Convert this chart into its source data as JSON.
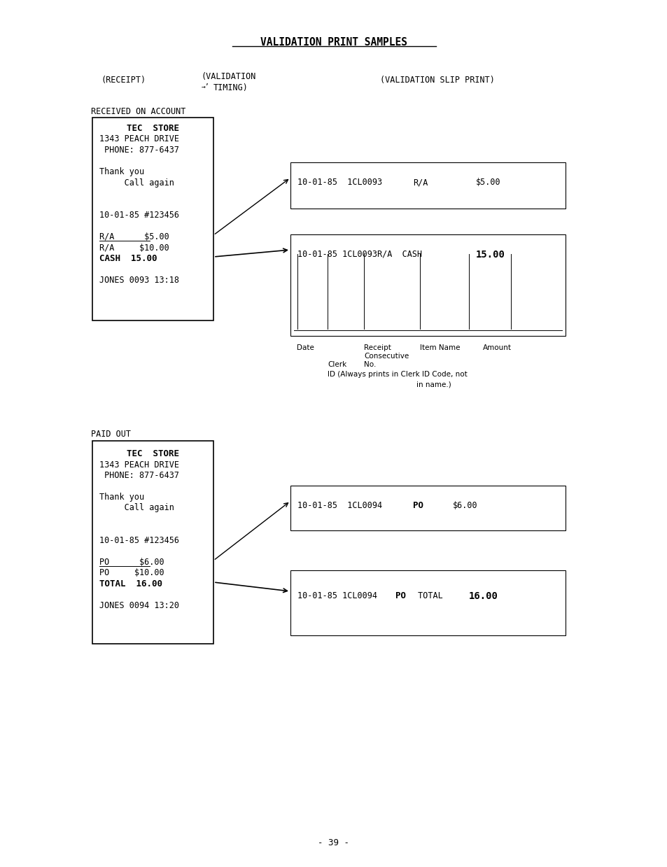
{
  "title": "VALIDATION PRINT SAMPLES",
  "section1_label": "RECEIVED ON ACCOUNT",
  "section2_label": "PAID OUT",
  "receipt1_lines": [
    [
      "TEC  STORE",
      "bold",
      "center"
    ],
    [
      "1343 PEACH DRIVE",
      "normal",
      "left"
    ],
    [
      " PHONE: 877-6437",
      "normal",
      "left"
    ],
    [
      "",
      "normal",
      "left"
    ],
    [
      "Thank you",
      "normal",
      "left"
    ],
    [
      "     Call again",
      "normal",
      "left"
    ],
    [
      "",
      "normal",
      "left"
    ],
    [
      "",
      "normal",
      "left"
    ],
    [
      "10-01-85 #123456",
      "normal",
      "left"
    ],
    [
      "",
      "normal",
      "left"
    ],
    [
      "R/A      $5.00",
      "normal",
      "left"
    ],
    [
      "R/A     $10.00",
      "normal",
      "left"
    ],
    [
      "CASH  15.00",
      "bold",
      "left"
    ],
    [
      "",
      "normal",
      "left"
    ],
    [
      "JONES 0093 13:18",
      "normal",
      "left"
    ]
  ],
  "receipt2_lines": [
    [
      "TEC  STORE",
      "bold",
      "center"
    ],
    [
      "1343 PEACH DRIVE",
      "normal",
      "left"
    ],
    [
      " PHONE: 877-6437",
      "normal",
      "left"
    ],
    [
      "",
      "normal",
      "left"
    ],
    [
      "Thank you",
      "normal",
      "left"
    ],
    [
      "     Call again",
      "normal",
      "left"
    ],
    [
      "",
      "normal",
      "left"
    ],
    [
      "",
      "normal",
      "left"
    ],
    [
      "10-01-85 #123456",
      "normal",
      "left"
    ],
    [
      "",
      "normal",
      "left"
    ],
    [
      "PO      $6.00",
      "normal",
      "left"
    ],
    [
      "PO     $10.00",
      "normal",
      "left"
    ],
    [
      "TOTAL  16.00",
      "bold",
      "left"
    ],
    [
      "",
      "normal",
      "left"
    ],
    [
      "JONES 0094 13:20",
      "normal",
      "left"
    ]
  ],
  "page_number": "- 39 -",
  "bg_color": "#ffffff",
  "text_color": "#000000"
}
